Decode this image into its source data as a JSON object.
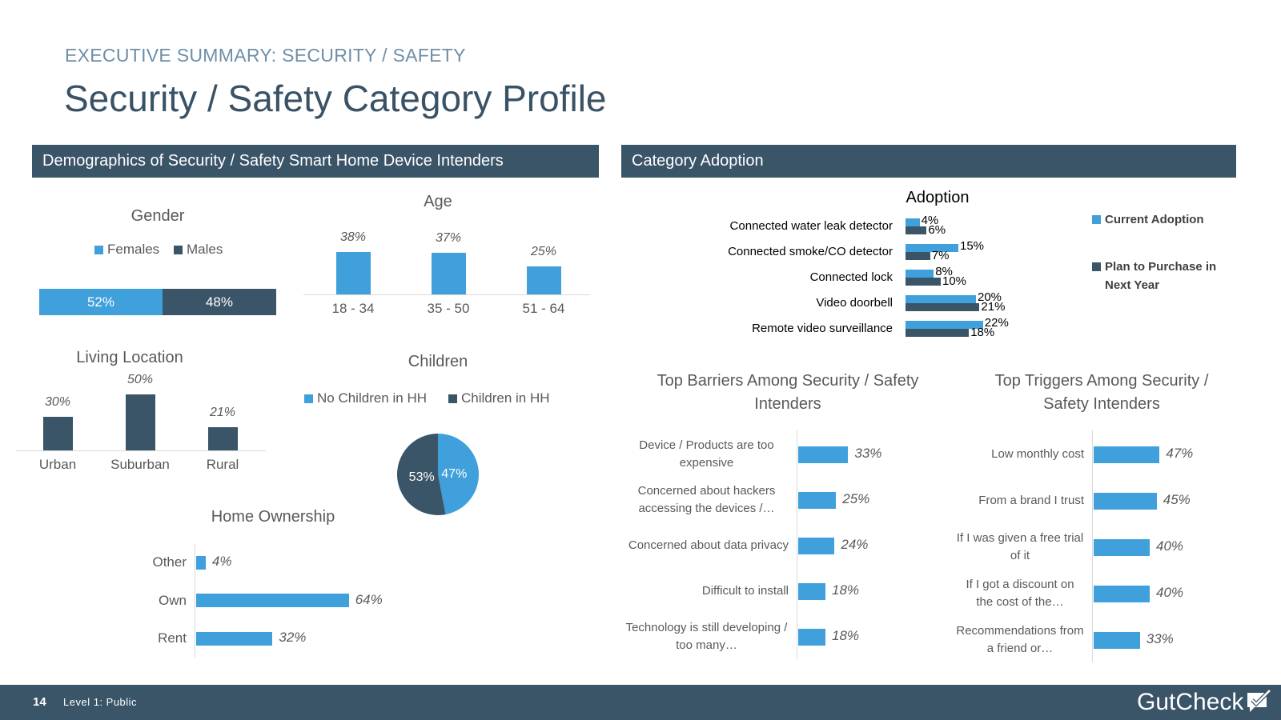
{
  "header": {
    "kicker": "EXECUTIVE SUMMARY: SECURITY / SAFETY",
    "title": "Security / Safety Category Profile"
  },
  "sections": {
    "left": "Demographics of Security / Safety Smart Home Device Intenders",
    "right": "Category Adoption"
  },
  "footer": {
    "page": "14",
    "level": "Level 1: Public",
    "logo": "GutCheck"
  },
  "colors": {
    "blue": "#3fa0db",
    "navy": "#3a5468"
  },
  "chart_data": [
    {
      "id": "gender",
      "type": "bar",
      "stacked": true,
      "title": "Gender",
      "categories": [
        "Females",
        "Males"
      ],
      "values": [
        52,
        48
      ],
      "labels": [
        "52%",
        "48%"
      ]
    },
    {
      "id": "age",
      "type": "bar",
      "title": "Age",
      "categories": [
        "18 - 34",
        "35 - 50",
        "51 - 64"
      ],
      "values": [
        38,
        37,
        25
      ],
      "labels": [
        "38%",
        "37%",
        "25%"
      ]
    },
    {
      "id": "living_location",
      "type": "bar",
      "title": "Living Location",
      "categories": [
        "Urban",
        "Suburban",
        "Rural"
      ],
      "values": [
        30,
        50,
        21
      ],
      "labels": [
        "30%",
        "50%",
        "21%"
      ]
    },
    {
      "id": "children",
      "type": "pie",
      "title": "Children",
      "categories": [
        "No Children in HH",
        "Children in HH"
      ],
      "values": [
        47,
        53
      ],
      "labels": [
        "47%",
        "53%"
      ]
    },
    {
      "id": "home_ownership",
      "type": "bar",
      "orientation": "horizontal",
      "title": "Home Ownership",
      "categories": [
        "Other",
        "Own",
        "Rent"
      ],
      "values": [
        4,
        64,
        32
      ],
      "labels": [
        "4%",
        "64%",
        "32%"
      ]
    },
    {
      "id": "adoption",
      "type": "bar",
      "orientation": "horizontal",
      "title": "Adoption",
      "categories": [
        "Connected water leak detector",
        "Connected smoke/CO detector",
        "Connected lock",
        "Video doorbell",
        "Remote video surveillance"
      ],
      "series": [
        {
          "name": "Current Adoption",
          "values": [
            4,
            15,
            8,
            20,
            22
          ],
          "labels": [
            "4%",
            "15%",
            "8%",
            "20%",
            "22%"
          ]
        },
        {
          "name": "Plan to Purchase in Next Year",
          "values": [
            6,
            7,
            10,
            21,
            18
          ],
          "labels": [
            "6%",
            "7%",
            "10%",
            "21%",
            "18%"
          ]
        }
      ]
    },
    {
      "id": "barriers",
      "type": "bar",
      "orientation": "horizontal",
      "title": "Top Barriers Among Security / Safety Intenders",
      "categories": [
        "Device / Products are too expensive",
        "Concerned about hackers accessing the devices /…",
        "Concerned about data privacy",
        "Difficult to install",
        "Technology is still developing / too many…"
      ],
      "values": [
        33,
        25,
        24,
        18,
        18
      ],
      "labels": [
        "33%",
        "25%",
        "24%",
        "18%",
        "18%"
      ]
    },
    {
      "id": "triggers",
      "type": "bar",
      "orientation": "horizontal",
      "title": "Top Triggers Among Security / Safety Intenders",
      "categories": [
        "Low monthly cost",
        "From a brand I trust",
        "If I was given a free trial of it",
        "If I got a discount on the cost of the…",
        "Recommendations from a friend or…"
      ],
      "values": [
        47,
        45,
        40,
        40,
        33
      ],
      "labels": [
        "47%",
        "45%",
        "40%",
        "40%",
        "33%"
      ]
    }
  ]
}
